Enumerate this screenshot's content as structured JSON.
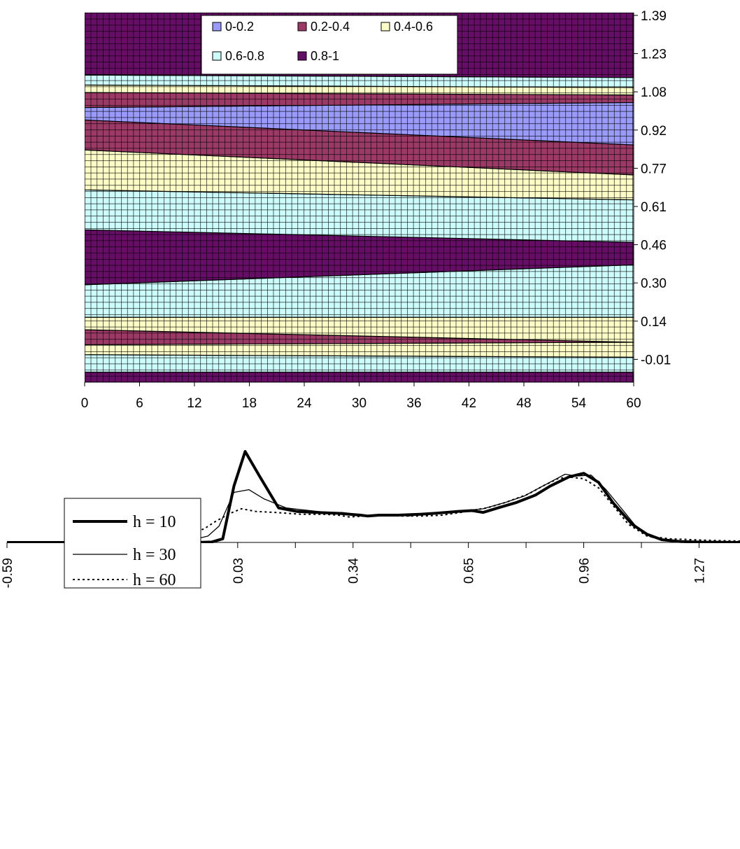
{
  "chart_data": [
    {
      "type": "contour",
      "xlim": [
        0,
        60
      ],
      "ylim": [
        -0.09,
        1.39
      ],
      "x_ticks": [
        "0",
        "6",
        "12",
        "18",
        "24",
        "30",
        "36",
        "42",
        "48",
        "54",
        "60"
      ],
      "y_ticks": [
        "1.39",
        "1.23",
        "1.08",
        "0.92",
        "0.77",
        "0.61",
        "0.46",
        "0.30",
        "0.14",
        "-0.01"
      ],
      "grid": true,
      "legend_position": "top",
      "legend": [
        {
          "label": "0-0.2",
          "color": "#9a9afa"
        },
        {
          "label": "0.2-0.4",
          "color": "#9b3a66"
        },
        {
          "label": "0.4-0.6",
          "color": "#fcfcc6"
        },
        {
          "label": "0.6-0.8",
          "color": "#cdfcfc"
        },
        {
          "label": "0.8-1",
          "color": "#660e66"
        }
      ],
      "bands": [
        {
          "level": "0.8-1",
          "bottom": [
            -0.09,
            -0.09
          ],
          "top": [
            -0.05,
            -0.05
          ]
        },
        {
          "level": "0.6-0.8",
          "bottom": [
            -0.05,
            -0.05
          ],
          "top": [
            0.02,
            0.01
          ]
        },
        {
          "level": "0.4-0.6",
          "bottom": [
            0.02,
            0.01
          ],
          "top": [
            0.06,
            0.07
          ]
        },
        {
          "level": "0.2-0.4",
          "bottom": [
            0.06,
            0.07
          ],
          "top": [
            0.12,
            0.07
          ]
        },
        {
          "level": "0.4-0.6",
          "bottom": [
            0.12,
            0.07
          ],
          "top": [
            0.17,
            0.17
          ]
        },
        {
          "level": "0.6-0.8",
          "bottom": [
            0.17,
            0.17
          ],
          "top": [
            0.3,
            0.38
          ]
        },
        {
          "level": "0.8-1",
          "bottom": [
            0.3,
            0.38
          ],
          "top": [
            0.52,
            0.47
          ]
        },
        {
          "level": "0.6-0.8",
          "bottom": [
            0.52,
            0.47
          ],
          "top": [
            0.68,
            0.64
          ]
        },
        {
          "level": "0.4-0.6",
          "bottom": [
            0.68,
            0.64
          ],
          "top": [
            0.84,
            0.74
          ]
        },
        {
          "level": "0.2-0.4",
          "bottom": [
            0.84,
            0.74
          ],
          "top": [
            0.96,
            0.86
          ]
        },
        {
          "level": "0-0.2",
          "bottom": [
            0.96,
            0.86
          ],
          "top": [
            1.01,
            1.03
          ]
        },
        {
          "level": "0.2-0.4",
          "bottom": [
            1.01,
            1.03
          ],
          "top": [
            1.07,
            1.06
          ]
        },
        {
          "level": "0.4-0.6",
          "bottom": [
            1.07,
            1.06
          ],
          "top": [
            1.1,
            1.09
          ]
        },
        {
          "level": "0.6-0.8",
          "bottom": [
            1.1,
            1.09
          ],
          "top": [
            1.14,
            1.13
          ]
        },
        {
          "level": "0.8-1",
          "bottom": [
            1.14,
            1.13
          ],
          "top": [
            1.39,
            1.39
          ]
        }
      ]
    },
    {
      "type": "line",
      "xlim": [
        -0.59,
        1.38
      ],
      "x_ticks": [
        "-0.59",
        "-0.28",
        "0.03",
        "0.34",
        "0.65",
        "0.96",
        "1.27"
      ],
      "ylim": [
        0,
        1
      ],
      "legend_position": "top-left",
      "series": [
        {
          "name": "h = 10",
          "style": "thick",
          "points": [
            [
              -0.59,
              0
            ],
            [
              -0.2,
              0
            ],
            [
              -0.08,
              0
            ],
            [
              -0.04,
              0.005
            ],
            [
              -0.01,
              0.04
            ],
            [
              0.02,
              0.62
            ],
            [
              0.05,
              1.0
            ],
            [
              0.09,
              0.72
            ],
            [
              0.14,
              0.38
            ],
            [
              0.19,
              0.34
            ],
            [
              0.24,
              0.33
            ],
            [
              0.3,
              0.32
            ],
            [
              0.36,
              0.3
            ],
            [
              0.38,
              0.29
            ],
            [
              0.41,
              0.3
            ],
            [
              0.46,
              0.3
            ],
            [
              0.52,
              0.31
            ],
            [
              0.56,
              0.32
            ],
            [
              0.62,
              0.34
            ],
            [
              0.66,
              0.35
            ],
            [
              0.69,
              0.33
            ],
            [
              0.73,
              0.38
            ],
            [
              0.78,
              0.44
            ],
            [
              0.83,
              0.52
            ],
            [
              0.87,
              0.62
            ],
            [
              0.92,
              0.72
            ],
            [
              0.96,
              0.76
            ],
            [
              1.0,
              0.66
            ],
            [
              1.04,
              0.43
            ],
            [
              1.09,
              0.2
            ],
            [
              1.13,
              0.09
            ],
            [
              1.17,
              0.03
            ],
            [
              1.22,
              0.01
            ],
            [
              1.28,
              0.003
            ],
            [
              1.38,
              0
            ]
          ]
        },
        {
          "name": "h = 30",
          "style": "thin",
          "points": [
            [
              -0.59,
              0
            ],
            [
              -0.3,
              0
            ],
            [
              -0.2,
              0.002
            ],
            [
              -0.13,
              0.01
            ],
            [
              -0.08,
              0.04
            ],
            [
              -0.05,
              0.07
            ],
            [
              -0.02,
              0.18
            ],
            [
              0.02,
              0.55
            ],
            [
              0.06,
              0.58
            ],
            [
              0.1,
              0.48
            ],
            [
              0.16,
              0.38
            ],
            [
              0.2,
              0.36
            ],
            [
              0.27,
              0.33
            ],
            [
              0.31,
              0.33
            ],
            [
              0.35,
              0.31
            ],
            [
              0.38,
              0.29
            ],
            [
              0.41,
              0.3
            ],
            [
              0.45,
              0.31
            ],
            [
              0.49,
              0.29
            ],
            [
              0.53,
              0.32
            ],
            [
              0.59,
              0.33
            ],
            [
              0.64,
              0.35
            ],
            [
              0.69,
              0.37
            ],
            [
              0.75,
              0.44
            ],
            [
              0.8,
              0.51
            ],
            [
              0.85,
              0.62
            ],
            [
              0.91,
              0.75
            ],
            [
              0.94,
              0.73
            ],
            [
              0.98,
              0.74
            ],
            [
              1.02,
              0.58
            ],
            [
              1.06,
              0.38
            ],
            [
              1.1,
              0.18
            ],
            [
              1.14,
              0.06
            ],
            [
              1.18,
              0.02
            ],
            [
              1.22,
              0.005
            ],
            [
              1.3,
              0
            ],
            [
              1.38,
              0
            ]
          ]
        },
        {
          "name": "h = 60",
          "style": "dotted",
          "points": [
            [
              -0.59,
              0.002
            ],
            [
              -0.47,
              0.003
            ],
            [
              -0.35,
              0.008
            ],
            [
              -0.25,
              0.02
            ],
            [
              -0.17,
              0.05
            ],
            [
              -0.1,
              0.09
            ],
            [
              -0.06,
              0.15
            ],
            [
              -0.03,
              0.23
            ],
            [
              0.01,
              0.32
            ],
            [
              0.04,
              0.37
            ],
            [
              0.08,
              0.34
            ],
            [
              0.13,
              0.33
            ],
            [
              0.2,
              0.31
            ],
            [
              0.26,
              0.31
            ],
            [
              0.3,
              0.3
            ],
            [
              0.33,
              0.28
            ],
            [
              0.37,
              0.29
            ],
            [
              0.41,
              0.3
            ],
            [
              0.47,
              0.29
            ],
            [
              0.53,
              0.29
            ],
            [
              0.58,
              0.3
            ],
            [
              0.63,
              0.33
            ],
            [
              0.7,
              0.38
            ],
            [
              0.75,
              0.44
            ],
            [
              0.81,
              0.53
            ],
            [
              0.85,
              0.62
            ],
            [
              0.89,
              0.7
            ],
            [
              0.92,
              0.72
            ],
            [
              0.96,
              0.7
            ],
            [
              1.0,
              0.6
            ],
            [
              1.04,
              0.4
            ],
            [
              1.08,
              0.2
            ],
            [
              1.13,
              0.07
            ],
            [
              1.19,
              0.04
            ],
            [
              1.25,
              0.03
            ],
            [
              1.32,
              0.02
            ],
            [
              1.38,
              0.015
            ]
          ]
        }
      ]
    }
  ]
}
